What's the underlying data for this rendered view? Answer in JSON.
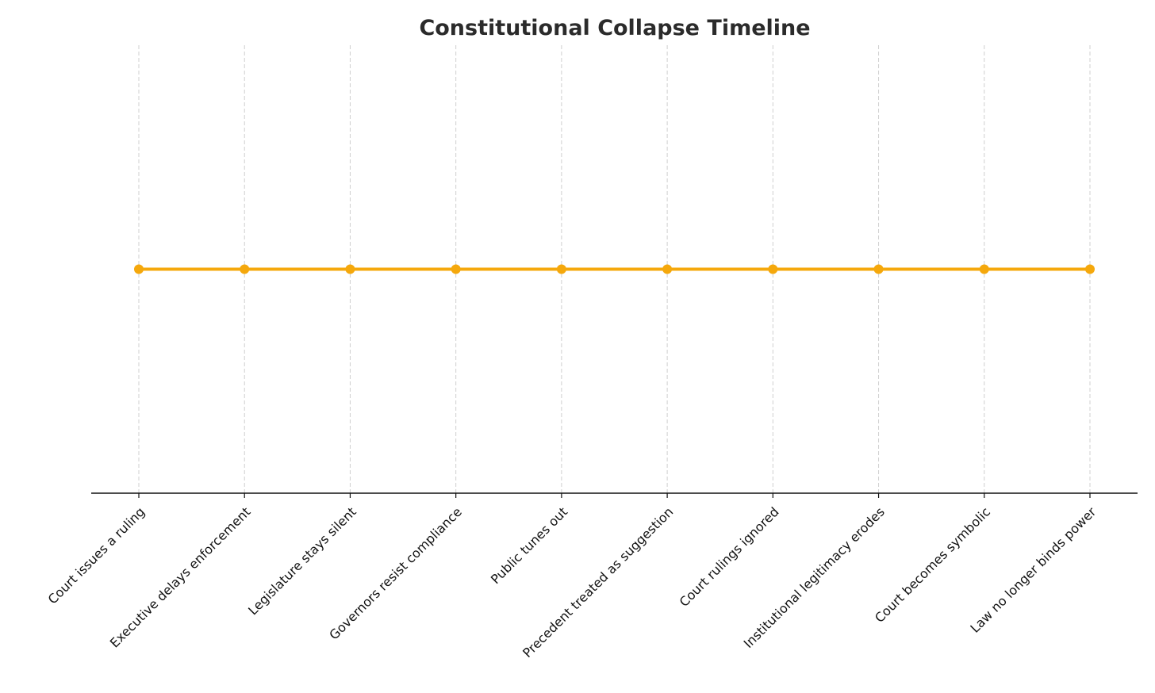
{
  "chart_data": {
    "type": "line",
    "title": "Constitutional Collapse Timeline",
    "categories": [
      "Court issues a ruling",
      "Executive delays enforcement",
      "Legislature stays silent",
      "Governors resist compliance",
      "Public tunes out",
      "Precedent treated as suggestion",
      "Court rulings ignored",
      "Institutional legitimacy erodes",
      "Court becomes symbolic",
      "Law no longer binds power"
    ],
    "values": [
      1,
      1,
      1,
      1,
      1,
      1,
      1,
      1,
      1,
      1
    ],
    "color": "#f5a80c",
    "ylim": [
      0,
      2
    ],
    "grid": true
  }
}
